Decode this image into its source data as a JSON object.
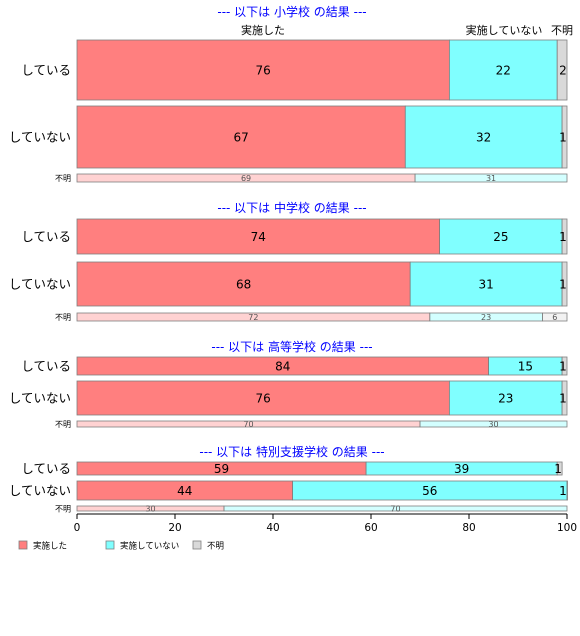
{
  "chart_data": {
    "type": "bar",
    "orientation": "horizontal",
    "stacked": true,
    "xlim": [
      0,
      100
    ],
    "x_ticks": [
      0,
      20,
      40,
      60,
      80,
      100
    ],
    "grid": false,
    "legend_position": "bottom-left",
    "series": [
      {
        "name": "実施した",
        "color": "#ff7f7f"
      },
      {
        "name": "実施していない",
        "color": "#80ffff"
      },
      {
        "name": "不明",
        "color": "#d9d9d9"
      }
    ],
    "column_headers": [
      "実施した",
      "実施していない",
      "不明"
    ],
    "panels": [
      {
        "title": "--- 以下は 小学校 の結果 ---",
        "rows": [
          {
            "label": "している",
            "values": [
              76,
              22,
              2
            ]
          },
          {
            "label": "していない",
            "values": [
              67,
              32,
              1
            ]
          },
          {
            "label": "不明",
            "values": [
              69,
              31,
              0
            ],
            "small": true
          }
        ]
      },
      {
        "title": "--- 以下は 中学校 の結果 ---",
        "rows": [
          {
            "label": "している",
            "values": [
              74,
              25,
              1
            ]
          },
          {
            "label": "していない",
            "values": [
              68,
              31,
              1
            ]
          },
          {
            "label": "不明",
            "values": [
              72,
              23,
              6
            ],
            "small": true
          }
        ]
      },
      {
        "title": "--- 以下は 高等学校 の結果 ---",
        "rows": [
          {
            "label": "している",
            "values": [
              84,
              15,
              1
            ]
          },
          {
            "label": "していない",
            "values": [
              76,
              23,
              1
            ]
          },
          {
            "label": "不明",
            "values": [
              70,
              30,
              0
            ],
            "small": true
          }
        ]
      },
      {
        "title": "--- 以下は 特別支援学校 の結果 ---",
        "rows": [
          {
            "label": "している",
            "values": [
              59,
              39,
              1
            ]
          },
          {
            "label": "していない",
            "values": [
              44,
              56,
              1
            ]
          },
          {
            "label": "不明",
            "values": [
              30,
              70,
              0
            ],
            "small": true
          }
        ]
      }
    ]
  }
}
